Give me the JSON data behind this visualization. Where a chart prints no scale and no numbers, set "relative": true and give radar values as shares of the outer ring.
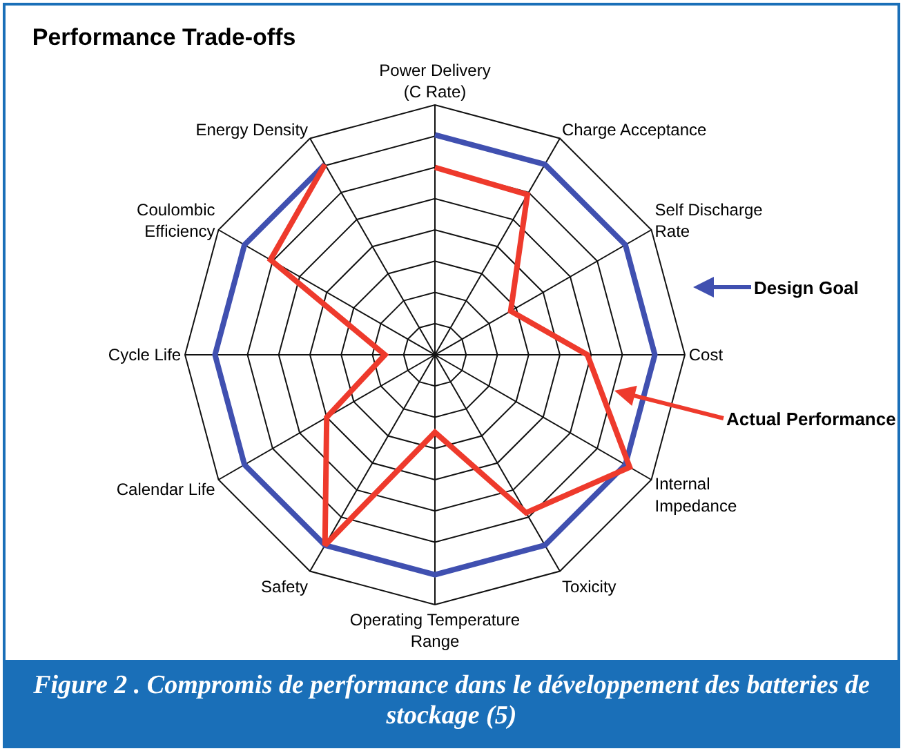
{
  "chart_data": {
    "type": "radar",
    "title": "Performance Trade-offs",
    "relative": true,
    "legend": "right",
    "marker": "none",
    "line_style": "solid",
    "categories": [
      "Power Delivery\n(C Rate)",
      "Charge Acceptance",
      "Self Discharge\nRate",
      "Cost",
      "Internal\nImpedance",
      "Toxicity",
      "Operating Temperature\nRange",
      "Safety",
      "Calendar Life",
      "Cycle Life",
      "Coulombic\nEfficiency",
      "Energy Density"
    ],
    "series": [
      {
        "name": "Design Goal",
        "color": "#4050b0",
        "values": [
          0.88,
          0.88,
          0.88,
          0.88,
          0.88,
          0.88,
          0.88,
          0.88,
          0.88,
          0.88,
          0.88,
          0.88
        ]
      },
      {
        "name": "Actual Performance",
        "color": "#ee3a2c",
        "values": [
          0.75,
          0.74,
          0.35,
          0.61,
          0.9,
          0.73,
          0.31,
          0.88,
          0.5,
          0.2,
          0.76,
          0.88
        ]
      }
    ],
    "annotations": [
      "Figure 2 . Compromis de performance dans le développement des batteries de stockage (5)"
    ]
  }
}
